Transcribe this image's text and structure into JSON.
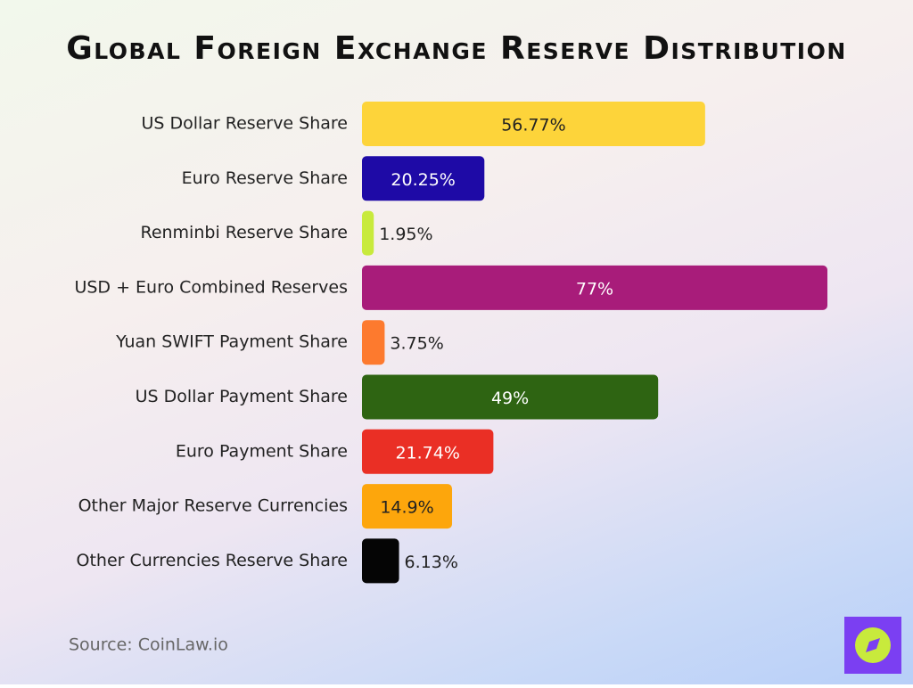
{
  "chart_data": {
    "type": "bar",
    "orientation": "horizontal",
    "title": "Global Foreign Exchange Reserve Distribution",
    "categories": [
      "US Dollar Reserve Share",
      "Euro Reserve Share",
      "Renminbi Reserve Share",
      "USD + Euro Combined Reserves",
      "Yuan SWIFT Payment Share",
      "US Dollar Payment Share",
      "Euro Payment Share",
      "Other Major Reserve Currencies",
      "Other Currencies Reserve Share"
    ],
    "values": [
      56.77,
      20.25,
      1.95,
      77,
      3.75,
      49,
      21.74,
      14.9,
      6.13
    ],
    "value_labels": [
      "56.77%",
      "20.25%",
      "1.95%",
      "77%",
      "3.75%",
      "49%",
      "21.74%",
      "14.9%",
      "6.13%"
    ],
    "colors": [
      "#fdd43a",
      "#1e0aa6",
      "#c8ea3c",
      "#a81c7a",
      "#fd7a2e",
      "#2e6412",
      "#ea2f25",
      "#fda60c",
      "#050505"
    ],
    "source": "Source: CoinLaw.io"
  }
}
